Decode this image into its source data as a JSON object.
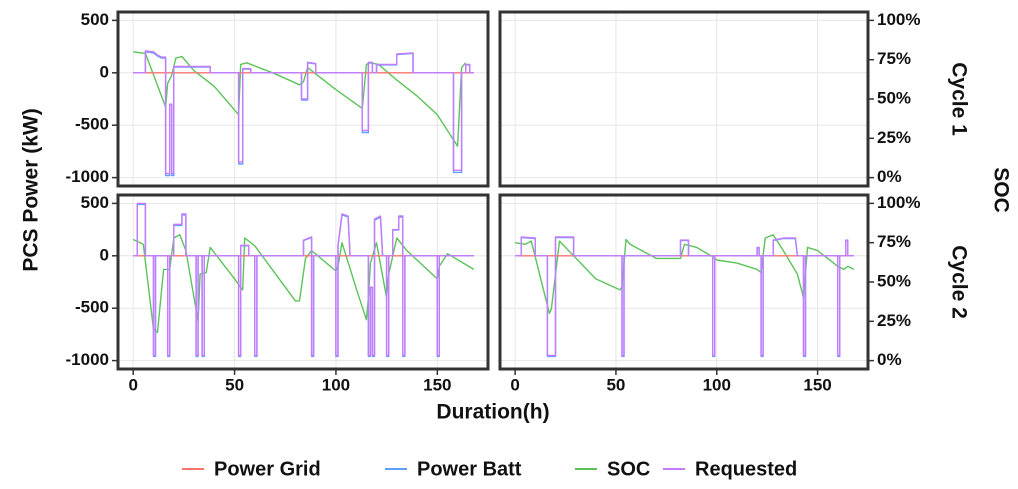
{
  "chart_data": {
    "type": "line",
    "x_label": "Duration(h)",
    "y_label": "PCS Power (kW)",
    "y2_label": "SOC",
    "facet_rows": [
      "Cycle 1",
      "Cycle 2"
    ],
    "grid": true,
    "xlim": [
      -7.5,
      175
    ],
    "xticks": [
      0,
      50,
      100,
      150
    ],
    "ylim": [
      -1080,
      580
    ],
    "yticks": [
      -1000,
      -500,
      0,
      500
    ],
    "y2lim": [
      -5.33,
      105.33
    ],
    "y2ticks": [
      {
        "value": 0,
        "label": "0%"
      },
      {
        "value": 25,
        "label": "25%"
      },
      {
        "value": 50,
        "label": "50%"
      },
      {
        "value": 75,
        "label": "75%"
      },
      {
        "value": 100,
        "label": "100%"
      }
    ],
    "series": [
      {
        "name": "Power Grid",
        "color": "#f8766d"
      },
      {
        "name": "Power Batt",
        "color": "#619cff"
      },
      {
        "name": "SOC",
        "color": "#5cc35a",
        "axis": "y2"
      },
      {
        "name": "Requested",
        "color": "#c77cff"
      }
    ],
    "panels": [
      {
        "series": [
          {
            "x": [
              0,
              168
            ],
            "values": [
              0,
              0
            ]
          },
          {
            "x": [
              0,
              6,
              6,
              10,
              12,
              14,
              16,
              16,
              18,
              18,
              19,
              19,
              20,
              20,
              38,
              38,
              52,
              52,
              54,
              54,
              58,
              58,
              83,
              83,
              86,
              86,
              90,
              90,
              113,
              113,
              116,
              116,
              118,
              118,
              120,
              120,
              130,
              130,
              138,
              138,
              158,
              158,
              162,
              162,
              164,
              164,
              166,
              166,
              168
            ],
            "values": [
              0,
              0,
              200,
              190,
              160,
              140,
              140,
              -980,
              -980,
              -300,
              -300,
              -980,
              -980,
              55,
              55,
              0,
              0,
              -870,
              -870,
              35,
              35,
              0,
              0,
              -260,
              -260,
              95,
              85,
              0,
              0,
              -570,
              -570,
              95,
              95,
              0,
              0,
              75,
              75,
              175,
              185,
              0,
              0,
              -950,
              -950,
              0,
              0,
              75,
              75,
              0,
              0
            ]
          },
          {
            "x": [
              0,
              6,
              16,
              17,
              19,
              21,
              24,
              30,
              40,
              52,
              53,
              56,
              70,
              82,
              84,
              86,
              100,
              113,
              115,
              117,
              121,
              130,
              140,
              150,
              160,
              162,
              164
            ],
            "values": [
              80,
              79,
              45,
              60,
              65,
              76,
              77,
              68,
              58,
              40,
              72,
              73,
              66,
              59,
              61,
              70,
              56,
              44,
              72,
              73,
              72,
              62,
              52,
              40,
              20,
              70,
              73
            ]
          },
          {
            "x": [
              0,
              6,
              6,
              10,
              12,
              14,
              16,
              16,
              18,
              18,
              19,
              19,
              20,
              20,
              38,
              38,
              52,
              52,
              54,
              54,
              58,
              58,
              83,
              83,
              86,
              86,
              90,
              90,
              113,
              113,
              116,
              116,
              118,
              118,
              120,
              120,
              130,
              130,
              138,
              138,
              158,
              158,
              162,
              162,
              164,
              164,
              166,
              166,
              168
            ],
            "values": [
              0,
              0,
              210,
              200,
              170,
              150,
              150,
              -960,
              -960,
              -300,
              -300,
              -960,
              -960,
              60,
              60,
              0,
              0,
              -850,
              -850,
              40,
              40,
              0,
              0,
              -250,
              -250,
              100,
              90,
              0,
              0,
              -550,
              -550,
              100,
              100,
              0,
              0,
              80,
              80,
              180,
              190,
              0,
              0,
              -930,
              -930,
              0,
              0,
              80,
              80,
              0,
              0
            ]
          }
        ]
      },
      {
        "series": []
      },
      {
        "series": [
          {
            "x": [
              0,
              168
            ],
            "values": [
              0,
              0
            ]
          },
          {
            "x": [
              0,
              2,
              2,
              6,
              6,
              10,
              10,
              11,
              11,
              17,
              17,
              18,
              18,
              20,
              20,
              24,
              24,
              26,
              26,
              31,
              31,
              32,
              32,
              34,
              34,
              35,
              35,
              52,
              52,
              53,
              53,
              57,
              57,
              60,
              60,
              61,
              61,
              84,
              84,
              88,
              88,
              89,
              89,
              100,
              100,
              101,
              101,
              103,
              106,
              107,
              116,
              116,
              117,
              117,
              118,
              118,
              119,
              119,
              122,
              123,
              125,
              125,
              126,
              126,
              128,
              128,
              131,
              131,
              133,
              133,
              134,
              134,
              150,
              150,
              151,
              151,
              168
            ],
            "values": [
              0,
              0,
              490,
              490,
              0,
              0,
              -960,
              -960,
              0,
              0,
              -960,
              -960,
              0,
              0,
              290,
              290,
              390,
              390,
              0,
              0,
              -960,
              -960,
              0,
              0,
              -960,
              -960,
              0,
              0,
              -960,
              -960,
              95,
              95,
              0,
              0,
              -960,
              -960,
              0,
              0,
              145,
              175,
              -960,
              -960,
              0,
              0,
              -960,
              -960,
              95,
              390,
              370,
              0,
              0,
              -960,
              -960,
              -300,
              -300,
              -960,
              -960,
              340,
              370,
              0,
              0,
              -960,
              -960,
              0,
              0,
              245,
              245,
              370,
              370,
              -960,
              -960,
              0,
              0,
              -960,
              -960,
              0,
              0
            ]
          },
          {
            "x": [
              0,
              5,
              10,
              12,
              15,
              18,
              20,
              23,
              26,
              32,
              33,
              36,
              38,
              50,
              54,
              55,
              60,
              80,
              82,
              85,
              88,
              100,
              101,
              103,
              110,
              115,
              116,
              117,
              120,
              125,
              126,
              130,
              135,
              150,
              151,
              155,
              168
            ],
            "values": [
              77,
              74,
              20,
              18,
              58,
              58,
              78,
              80,
              70,
              25,
              55,
              56,
              72,
              52,
              45,
              78,
              73,
              38,
              38,
              65,
              70,
              57,
              60,
              75,
              46,
              26,
              40,
              62,
              75,
              40,
              55,
              78,
              70,
              52,
              60,
              68,
              58
            ]
          },
          {
            "x": [
              0,
              2,
              2,
              6,
              6,
              10,
              10,
              11,
              11,
              17,
              17,
              18,
              18,
              20,
              20,
              24,
              24,
              26,
              26,
              31,
              31,
              32,
              32,
              34,
              34,
              35,
              35,
              52,
              52,
              53,
              53,
              57,
              57,
              60,
              60,
              61,
              61,
              84,
              84,
              88,
              88,
              89,
              89,
              100,
              100,
              101,
              101,
              103,
              106,
              107,
              116,
              116,
              117,
              117,
              118,
              118,
              119,
              119,
              122,
              123,
              125,
              125,
              126,
              126,
              128,
              128,
              131,
              131,
              133,
              133,
              134,
              134,
              150,
              150,
              151,
              151,
              168
            ],
            "values": [
              0,
              0,
              500,
              500,
              0,
              0,
              -950,
              -950,
              0,
              0,
              -950,
              -950,
              0,
              0,
              300,
              300,
              400,
              400,
              0,
              0,
              -950,
              -950,
              0,
              0,
              -950,
              -950,
              0,
              0,
              -950,
              -950,
              100,
              100,
              0,
              0,
              -950,
              -950,
              0,
              0,
              150,
              180,
              -950,
              -950,
              0,
              0,
              -950,
              -950,
              100,
              400,
              380,
              0,
              0,
              -950,
              -950,
              -300,
              -300,
              -950,
              -950,
              350,
              380,
              0,
              0,
              -950,
              -950,
              0,
              0,
              250,
              250,
              380,
              380,
              -950,
              -950,
              0,
              0,
              -950,
              -950,
              0,
              0
            ]
          }
        ]
      },
      {
        "series": [
          {
            "x": [
              0,
              168
            ],
            "values": [
              0,
              0
            ]
          },
          {
            "x": [
              0,
              3,
              3,
              10,
              10,
              16,
              16,
              20,
              20,
              29,
              29,
              53,
              53,
              54,
              54,
              82,
              82,
              86,
              86,
              98,
              98,
              99,
              99,
              120,
              120,
              121,
              121,
              122,
              122,
              123,
              123,
              128,
              128,
              133,
              139,
              140,
              143,
              143,
              144,
              144,
              160,
              160,
              161,
              161,
              164,
              164,
              165,
              165,
              168
            ],
            "values": [
              0,
              0,
              175,
              165,
              0,
              0,
              -960,
              -960,
              175,
              175,
              0,
              0,
              -960,
              -960,
              0,
              0,
              145,
              145,
              0,
              0,
              -960,
              -960,
              0,
              0,
              75,
              75,
              0,
              0,
              -960,
              -960,
              0,
              0,
              145,
              165,
              165,
              0,
              0,
              -960,
              -960,
              0,
              0,
              -960,
              -960,
              0,
              0,
              145,
              145,
              0,
              0
            ]
          },
          {
            "x": [
              0,
              5,
              8,
              17,
              18,
              22,
              28,
              40,
              52,
              53,
              55,
              57,
              70,
              82,
              84,
              90,
              98,
              100,
              110,
              120,
              122,
              124,
              128,
              133,
              140,
              143,
              145,
              150,
              160,
              163,
              165,
              168
            ],
            "values": [
              75,
              74,
              76,
              30,
              33,
              76,
              68,
              52,
              45,
              47,
              77,
              74,
              65,
              65,
              74,
              72,
              66,
              64,
              62,
              58,
              56,
              78,
              80,
              70,
              55,
              40,
              72,
              70,
              60,
              58,
              60,
              58
            ]
          },
          {
            "x": [
              0,
              3,
              3,
              10,
              10,
              16,
              16,
              20,
              20,
              29,
              29,
              53,
              53,
              54,
              54,
              82,
              82,
              86,
              86,
              98,
              98,
              99,
              99,
              120,
              120,
              121,
              121,
              122,
              122,
              123,
              123,
              128,
              128,
              133,
              139,
              140,
              143,
              143,
              144,
              144,
              160,
              160,
              161,
              161,
              164,
              164,
              165,
              165,
              168
            ],
            "values": [
              0,
              0,
              180,
              170,
              0,
              0,
              -950,
              -950,
              180,
              180,
              0,
              0,
              -950,
              -950,
              0,
              0,
              150,
              150,
              0,
              0,
              -950,
              -950,
              0,
              0,
              80,
              80,
              0,
              0,
              -950,
              -950,
              0,
              0,
              150,
              170,
              170,
              0,
              0,
              -950,
              -950,
              0,
              0,
              -950,
              -950,
              0,
              0,
              150,
              150,
              0,
              0
            ]
          }
        ]
      }
    ]
  }
}
